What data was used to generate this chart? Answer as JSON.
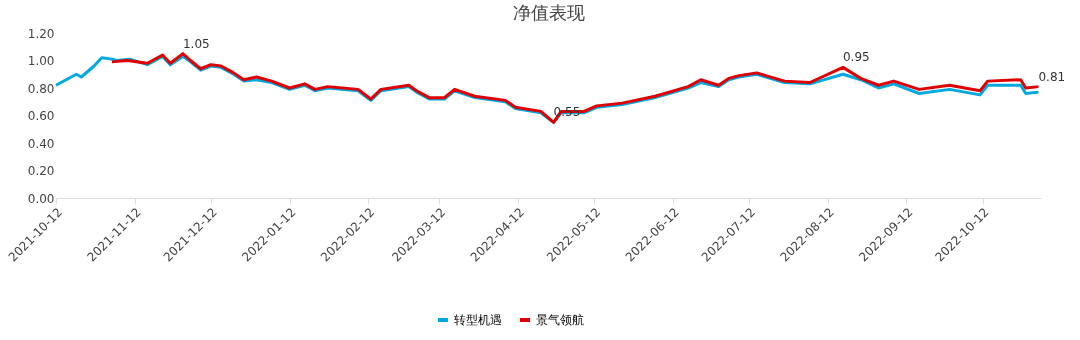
{
  "chart_data": {
    "type": "line",
    "title": "净值表现",
    "xlim": [
      "2021-10-12",
      "2022-11-04"
    ],
    "xticks": [
      "2021-10-12",
      "2021-11-12",
      "2021-12-12",
      "2022-01-12",
      "2022-02-12",
      "2022-03-12",
      "2022-04-12",
      "2022-05-12",
      "2022-06-12",
      "2022-07-12",
      "2022-08-12",
      "2022-09-12",
      "2022-10-12"
    ],
    "ylim": [
      0,
      1.2
    ],
    "yticks": [
      {
        "value": 0,
        "label": "0.00"
      },
      {
        "value": 0.2,
        "label": "0.20"
      },
      {
        "value": 0.4,
        "label": "0.40"
      },
      {
        "value": 0.6,
        "label": "0.60"
      },
      {
        "value": 0.8,
        "label": "0.80"
      },
      {
        "value": 1.0,
        "label": "1.00"
      },
      {
        "value": 1.2,
        "label": "1.20"
      }
    ],
    "grid": false,
    "legend": "bottom",
    "marker": "none",
    "line_style": "solid",
    "series": [
      {
        "name": "转型机遇",
        "color": "#00a8e0",
        "x": [
          "2021-10-12",
          "2021-10-16",
          "2021-10-20",
          "2021-10-22",
          "2021-10-27",
          "2021-10-30",
          "2021-11-03",
          "2021-11-05",
          "2021-11-10",
          "2021-11-17",
          "2021-11-19",
          "2021-11-23",
          "2021-11-26",
          "2021-12-01",
          "2021-12-04",
          "2021-12-08",
          "2021-12-12",
          "2021-12-16",
          "2021-12-21",
          "2021-12-25",
          "2021-12-30",
          "2022-01-05",
          "2022-01-12",
          "2022-01-18",
          "2022-01-22",
          "2022-01-27",
          "2022-02-08",
          "2022-02-13",
          "2022-02-17",
          "2022-02-28",
          "2022-03-03",
          "2022-03-08",
          "2022-03-14",
          "2022-03-18",
          "2022-03-26",
          "2022-04-07",
          "2022-04-11",
          "2022-04-21",
          "2022-04-26",
          "2022-04-29",
          "2022-05-08",
          "2022-05-13",
          "2022-05-23",
          "2022-06-05",
          "2022-06-18",
          "2022-06-23",
          "2022-06-30",
          "2022-07-04",
          "2022-07-08",
          "2022-07-15",
          "2022-07-26",
          "2022-08-05",
          "2022-08-18",
          "2022-08-25",
          "2022-09-01",
          "2022-09-07",
          "2022-09-17",
          "2022-09-29",
          "2022-10-11",
          "2022-10-14",
          "2022-10-27",
          "2022-10-29",
          "2022-11-03"
        ],
        "values": [
          0.82,
          0.86,
          0.9,
          0.88,
          0.96,
          1.02,
          1.01,
          1.0,
          1.01,
          0.97,
          0.99,
          1.03,
          0.97,
          1.03,
          0.99,
          0.93,
          0.96,
          0.95,
          0.9,
          0.85,
          0.86,
          0.84,
          0.79,
          0.82,
          0.78,
          0.8,
          0.78,
          0.71,
          0.78,
          0.81,
          0.77,
          0.72,
          0.72,
          0.78,
          0.73,
          0.7,
          0.65,
          0.62,
          0.55,
          0.62,
          0.62,
          0.66,
          0.68,
          0.73,
          0.8,
          0.84,
          0.81,
          0.86,
          0.88,
          0.9,
          0.84,
          0.83,
          0.9,
          0.86,
          0.8,
          0.83,
          0.76,
          0.79,
          0.75,
          0.82,
          0.82,
          0.76,
          0.77
        ]
      },
      {
        "name": "景气领航",
        "color": "#e00000",
        "x": [
          "2021-11-03",
          "2021-11-09",
          "2021-11-17",
          "2021-11-19",
          "2021-11-23",
          "2021-11-26",
          "2021-12-01",
          "2021-12-04",
          "2021-12-08",
          "2021-12-12",
          "2021-12-16",
          "2021-12-21",
          "2021-12-25",
          "2021-12-30",
          "2022-01-05",
          "2022-01-12",
          "2022-01-18",
          "2022-01-22",
          "2022-01-27",
          "2022-02-08",
          "2022-02-13",
          "2022-02-17",
          "2022-02-28",
          "2022-03-03",
          "2022-03-08",
          "2022-03-14",
          "2022-03-18",
          "2022-03-26",
          "2022-04-07",
          "2022-04-11",
          "2022-04-21",
          "2022-04-26",
          "2022-04-29",
          "2022-05-08",
          "2022-05-13",
          "2022-05-23",
          "2022-06-05",
          "2022-06-18",
          "2022-06-23",
          "2022-06-30",
          "2022-07-04",
          "2022-07-08",
          "2022-07-15",
          "2022-07-26",
          "2022-08-05",
          "2022-08-18",
          "2022-08-25",
          "2022-09-01",
          "2022-09-07",
          "2022-09-17",
          "2022-09-29",
          "2022-10-11",
          "2022-10-14",
          "2022-10-27",
          "2022-10-29",
          "2022-11-03"
        ],
        "values": [
          0.99,
          1.0,
          0.98,
          1.0,
          1.04,
          0.98,
          1.05,
          1.0,
          0.94,
          0.97,
          0.96,
          0.91,
          0.86,
          0.88,
          0.85,
          0.8,
          0.83,
          0.79,
          0.81,
          0.79,
          0.72,
          0.79,
          0.82,
          0.78,
          0.73,
          0.73,
          0.79,
          0.74,
          0.71,
          0.66,
          0.63,
          0.55,
          0.63,
          0.63,
          0.67,
          0.69,
          0.74,
          0.81,
          0.86,
          0.82,
          0.87,
          0.89,
          0.91,
          0.85,
          0.84,
          0.95,
          0.87,
          0.82,
          0.85,
          0.79,
          0.82,
          0.78,
          0.85,
          0.86,
          0.8,
          0.81
        ]
      }
    ],
    "annotations": [
      {
        "text": "1.05",
        "x": "2021-12-01",
        "y": 1.05
      },
      {
        "text": "0.55",
        "x": "2022-04-26",
        "y": 0.55
      },
      {
        "text": "0.95",
        "x": "2022-08-18",
        "y": 0.95
      },
      {
        "text": "0.81",
        "x": "2022-11-03",
        "y": 0.81
      }
    ]
  }
}
